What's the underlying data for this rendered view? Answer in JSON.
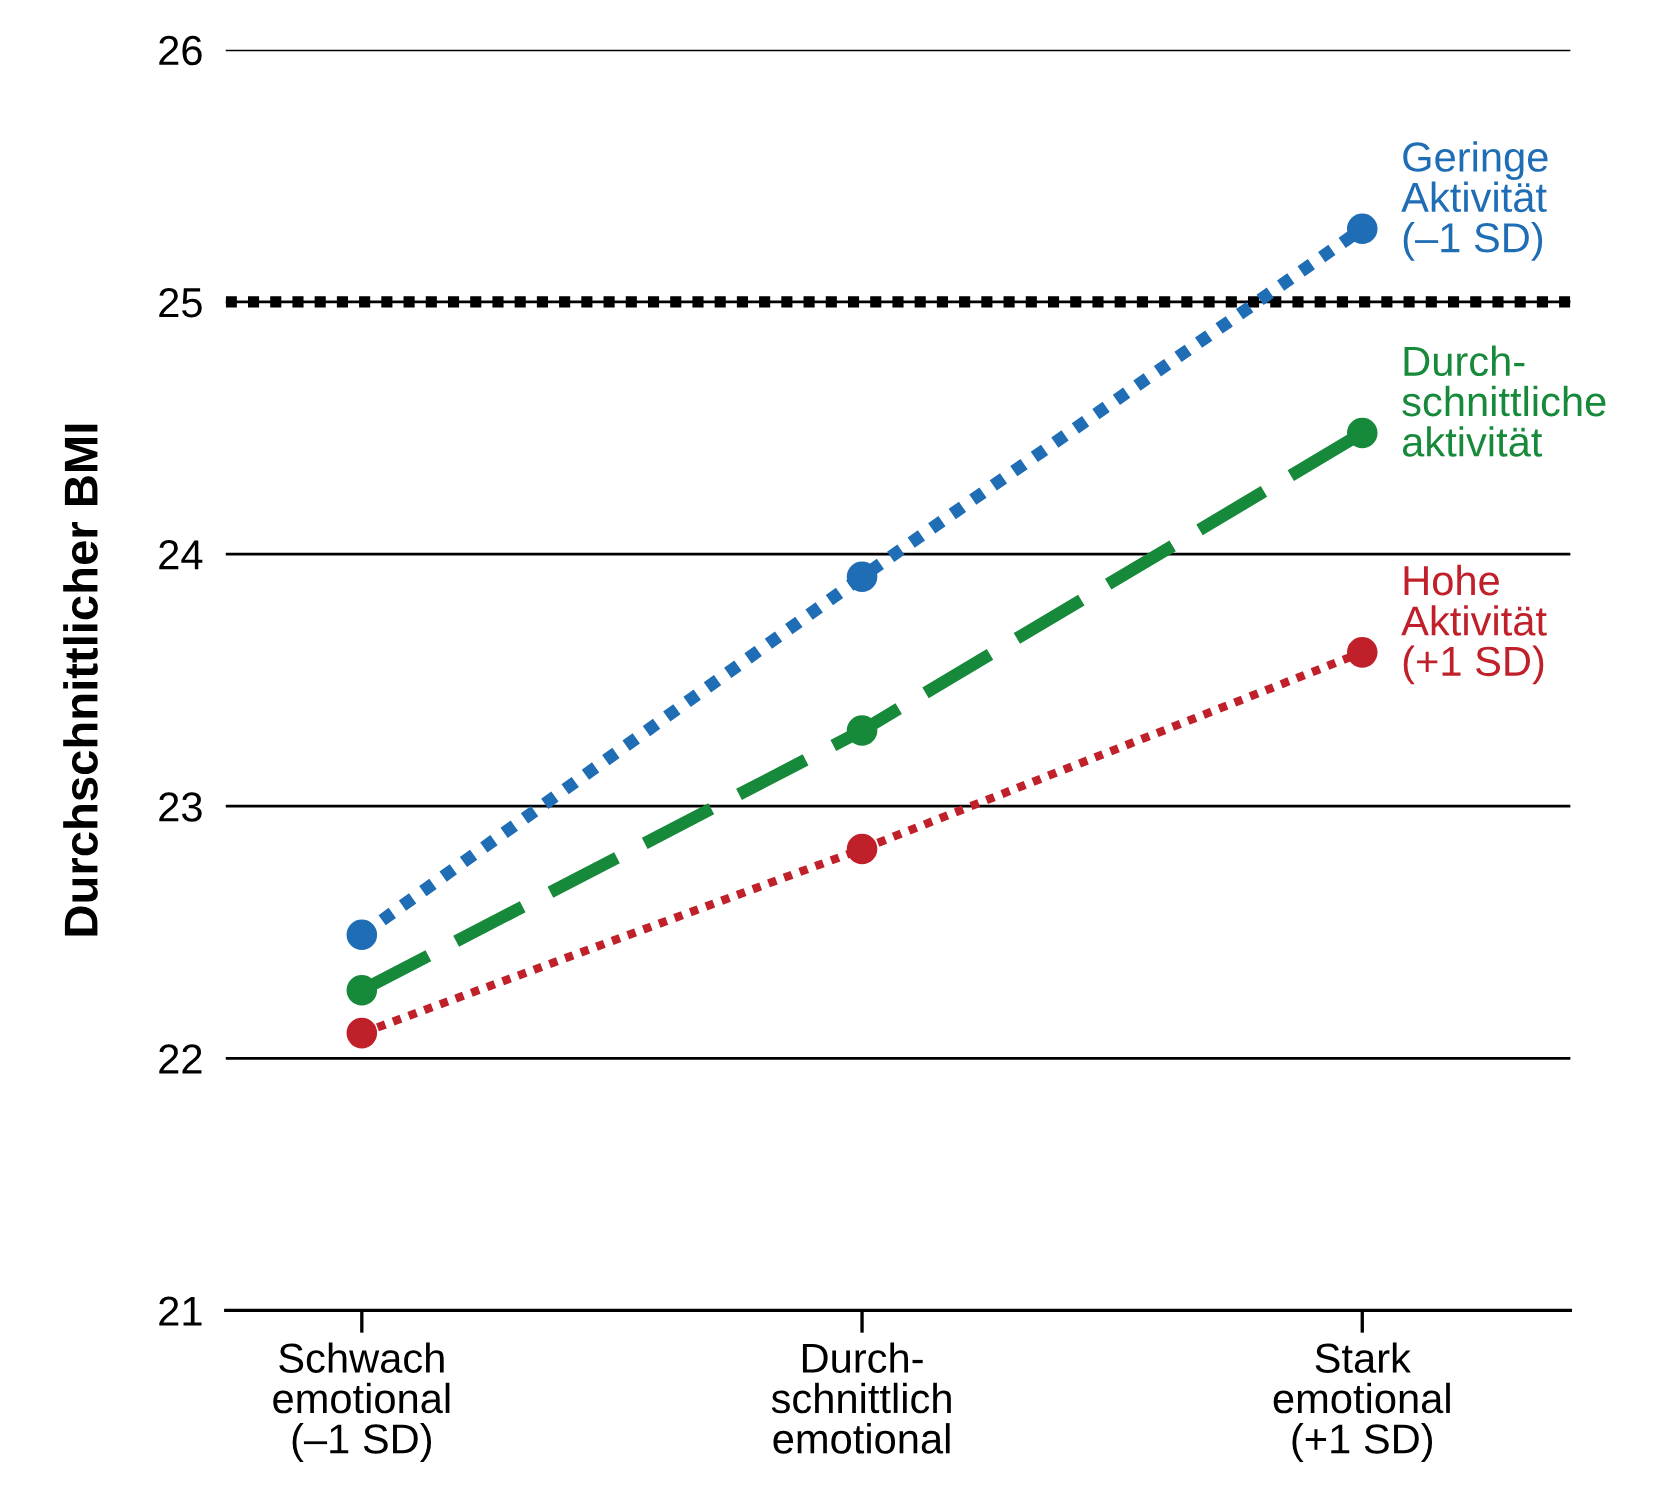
{
  "chart_data": {
    "type": "line",
    "ylabel": "Durchschnittlicher BMI",
    "categories": [
      "Schwach\nemotional\n(–1 SD)",
      "Durch-\nschnittlich\nemotional",
      "Stark\nemotional\n(+1 SD)"
    ],
    "series": [
      {
        "name": "Geringe\nAktivität\n(–1 SD)",
        "color": "#1f6db5",
        "values": [
          22.49,
          23.91,
          25.29
        ],
        "line_style": "dotted"
      },
      {
        "name": "Durch-\nschnittliche\naktivität",
        "color": "#17893a",
        "values": [
          22.27,
          23.3,
          24.48
        ],
        "line_style": "dashed"
      },
      {
        "name": "Hohe\nAktivität\n(+1 SD)",
        "color": "#c0202a",
        "values": [
          22.1,
          22.83,
          23.61
        ],
        "line_style": "dotted"
      }
    ],
    "ylim": [
      21,
      26
    ],
    "yticks": [
      21,
      22,
      23,
      24,
      25,
      26
    ],
    "grid": "y",
    "marker": "circle",
    "legend": false,
    "ref_lines": [
      {
        "axis": "y",
        "value": 25,
        "color": "#000000",
        "line_style": "dotted"
      }
    ]
  }
}
